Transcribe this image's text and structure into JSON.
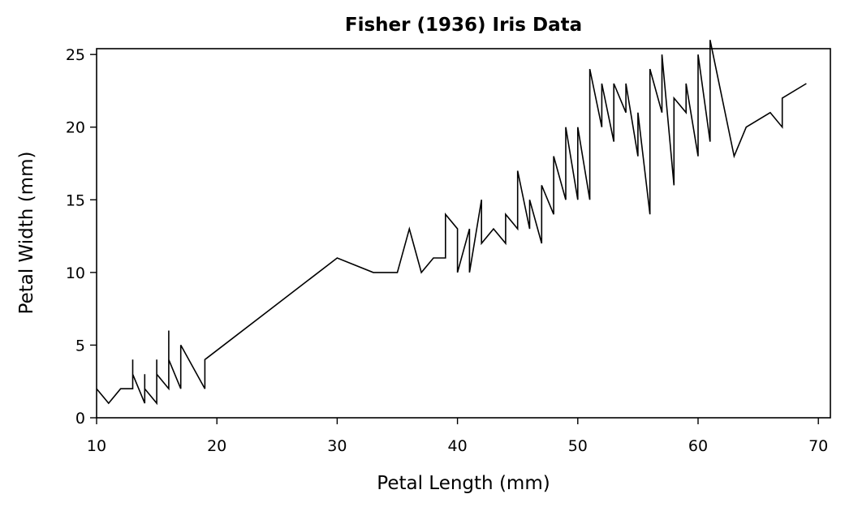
{
  "chart_data": {
    "type": "line",
    "title": "Fisher (1936) Iris Data",
    "xlabel": "Petal Length (mm)",
    "ylabel": "Petal Width (mm)",
    "xlim": [
      10,
      71
    ],
    "ylim": [
      0,
      25.4
    ],
    "xticks": [
      10,
      20,
      30,
      40,
      50,
      60,
      70
    ],
    "yticks": [
      0,
      5,
      10,
      15,
      20,
      25
    ],
    "grid": false,
    "legend": "none",
    "line_color": "#000000",
    "series": [
      {
        "x": [
          10,
          11,
          12,
          13,
          13,
          13,
          14,
          14,
          14,
          15,
          15,
          15,
          16,
          16,
          16,
          17,
          17,
          19,
          19,
          30,
          33,
          35,
          36,
          37,
          38,
          39,
          39,
          40,
          40,
          41,
          41,
          42,
          42,
          43,
          44,
          44,
          45,
          45,
          46,
          46,
          47,
          47,
          48,
          48,
          49,
          49,
          50,
          50,
          51,
          51,
          52,
          52,
          53,
          53,
          54,
          54,
          55,
          55,
          56,
          56,
          57,
          57,
          58,
          58,
          59,
          59,
          60,
          60,
          61,
          61,
          63,
          64,
          66,
          67,
          67,
          69
        ],
        "y": [
          2,
          1,
          2,
          2,
          4,
          3,
          1,
          3,
          2,
          1,
          4,
          3,
          2,
          6,
          4,
          2,
          5,
          2,
          4,
          11,
          10,
          10,
          13,
          10,
          11,
          11,
          14,
          13,
          10,
          13,
          10,
          15,
          12,
          13,
          12,
          14,
          13,
          17,
          13,
          15,
          12,
          16,
          14,
          18,
          15,
          20,
          15,
          20,
          15,
          24,
          20,
          23,
          19,
          23,
          21,
          23,
          18,
          21,
          14,
          24,
          21,
          25,
          16,
          22,
          21,
          23,
          18,
          25,
          19,
          26,
          18,
          20,
          21,
          20,
          22,
          23
        ]
      }
    ]
  }
}
